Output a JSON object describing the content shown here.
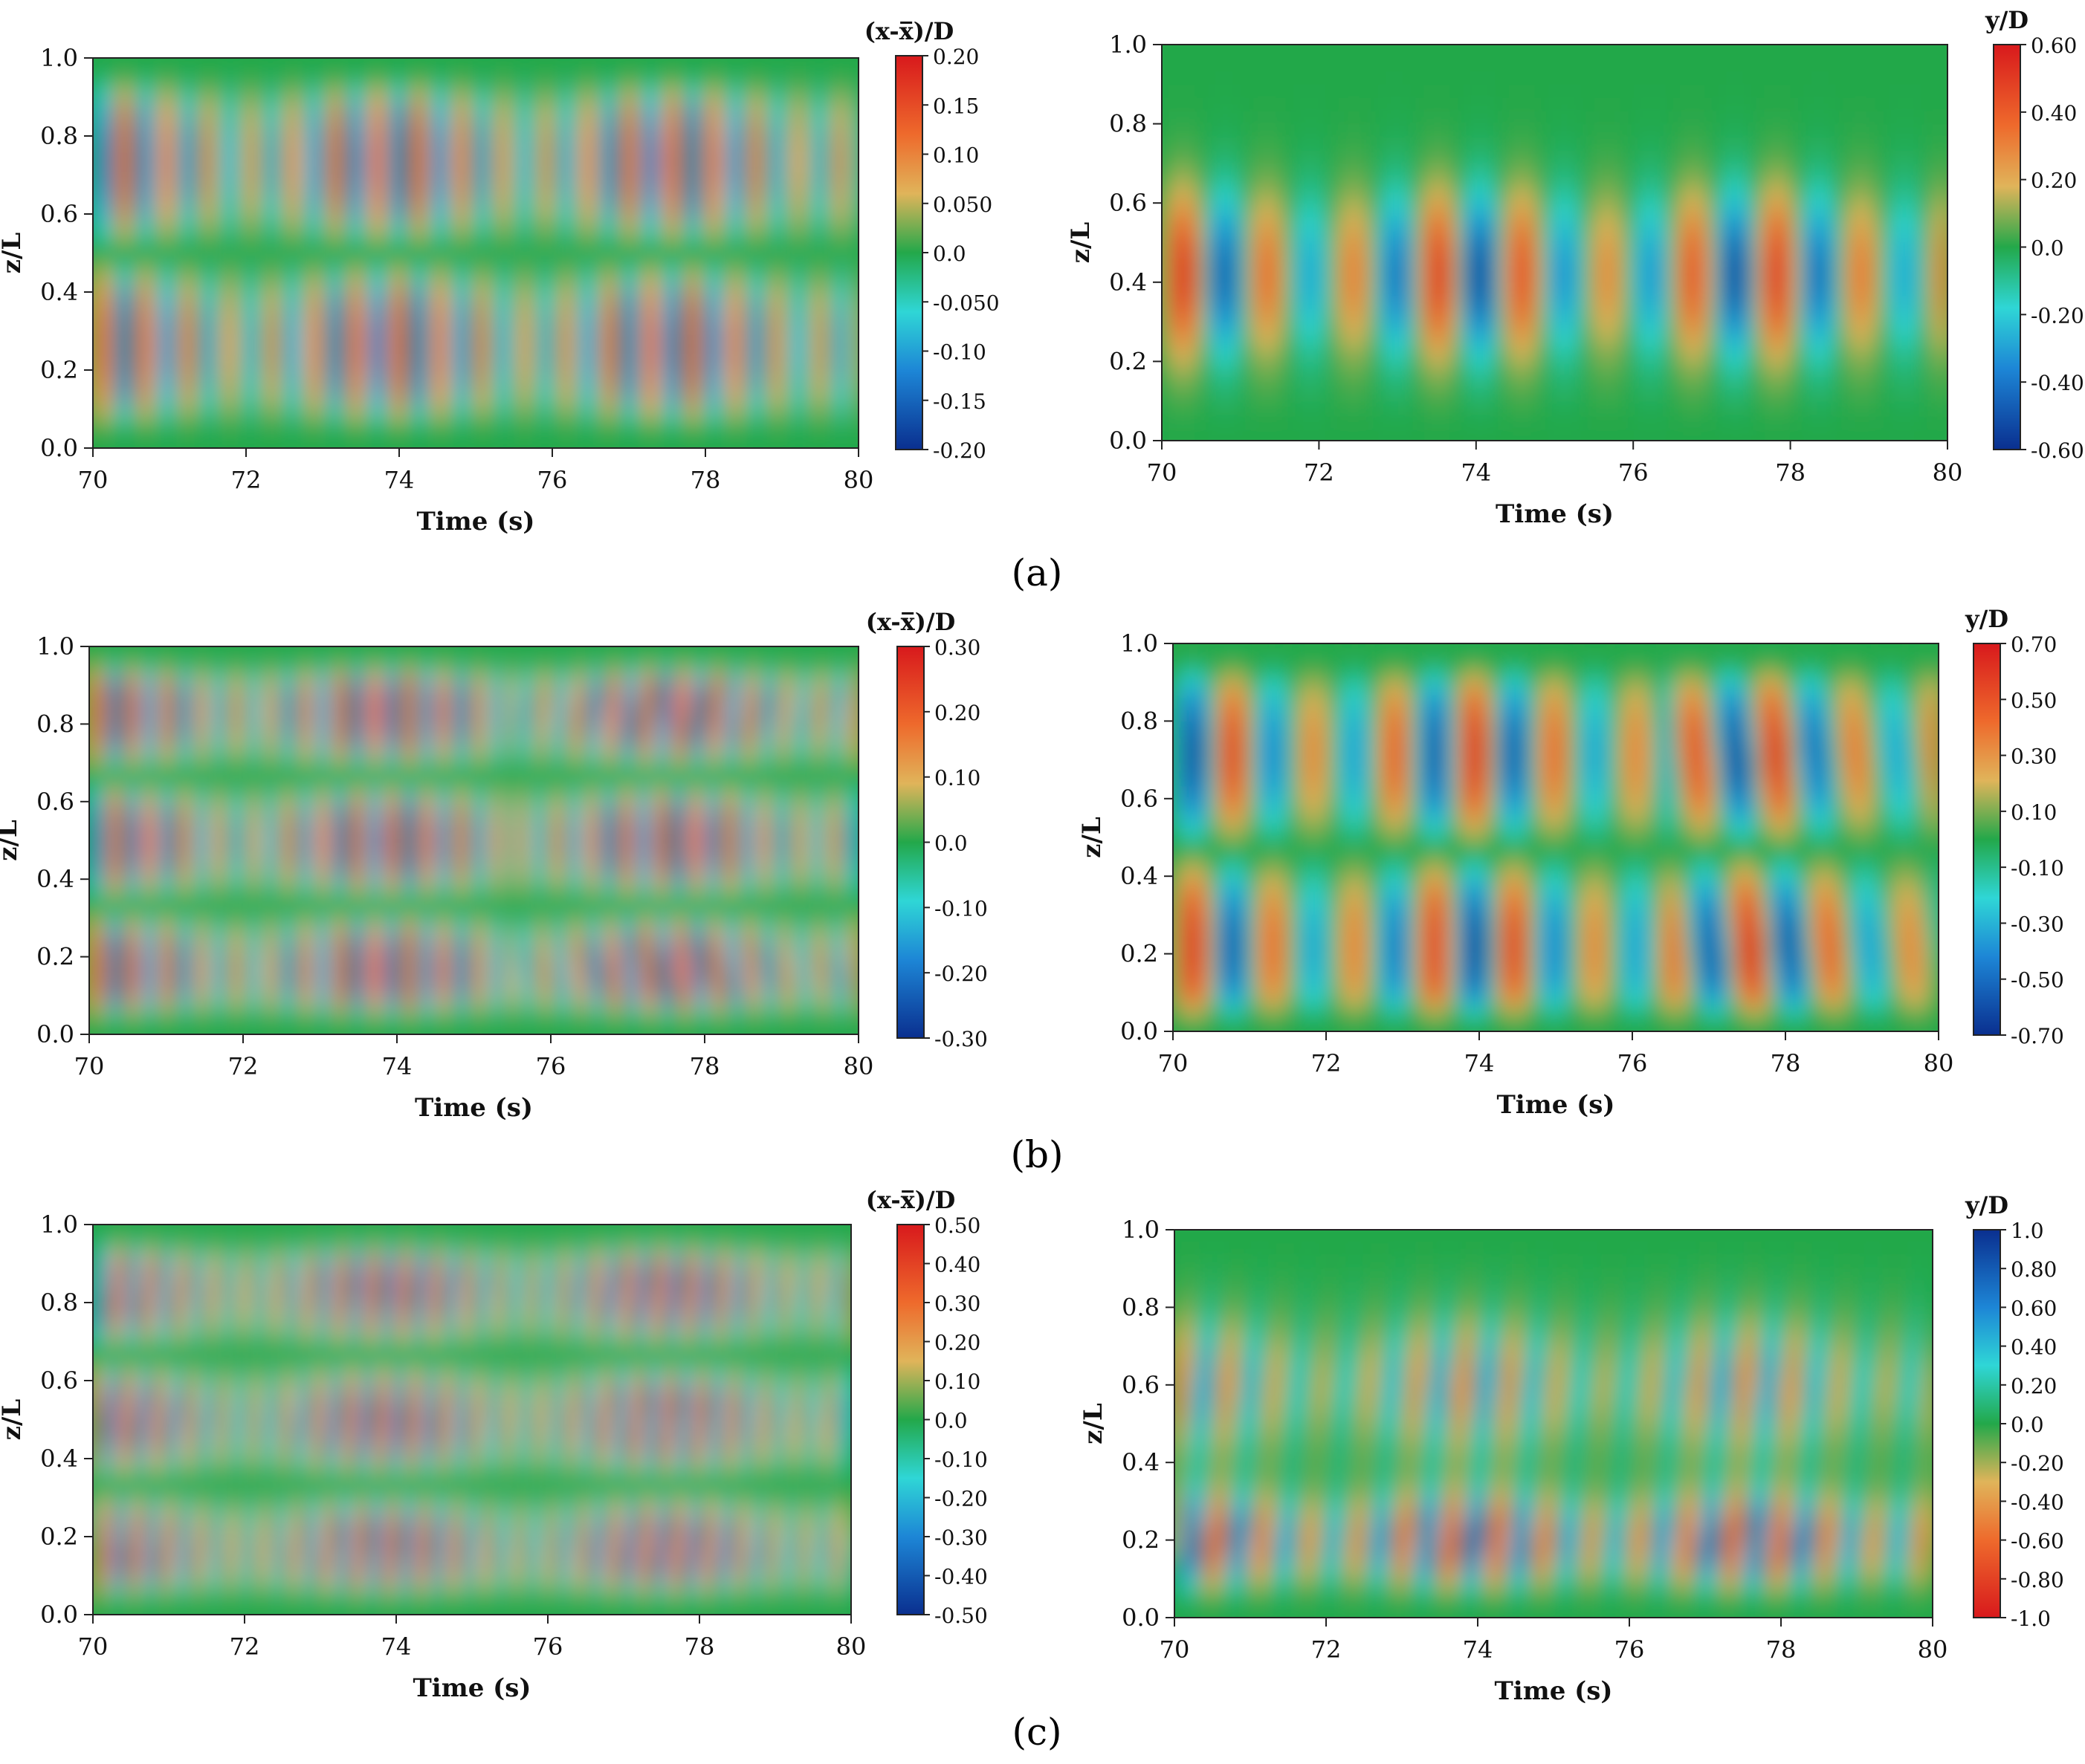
{
  "panel_labels": [
    "(a)",
    "(b)",
    "(c)"
  ],
  "chart_data": [
    {
      "type": "heatmap",
      "panel": "(a)",
      "position": "left",
      "xlabel": "Time (s)",
      "ylabel": "z/L",
      "xlim": [
        70,
        80
      ],
      "ylim": [
        0.0,
        1.0
      ],
      "xticks": [
        "70",
        "72",
        "74",
        "76",
        "78",
        "80"
      ],
      "yticks": [
        "0.0",
        "0.2",
        "0.4",
        "0.6",
        "0.8",
        "1.0"
      ],
      "colorbar": {
        "title": "(x-x̅)/D",
        "range": [
          -0.2,
          0.2
        ],
        "reversed": false,
        "ticks": [
          "0.20",
          "0.15",
          "0.10",
          "0.050",
          "0.0",
          "-0.050",
          "-0.10",
          "-0.15",
          "-0.20"
        ]
      },
      "field": {
        "pattern": "two_cell",
        "amplitude": 0.2,
        "period_s": 0.55,
        "lobes": [
          0.27,
          0.73
        ]
      }
    },
    {
      "type": "heatmap",
      "panel": "(a)",
      "position": "right",
      "xlabel": "Time (s)",
      "ylabel": "z/L",
      "xlim": [
        70,
        80
      ],
      "ylim": [
        0.0,
        1.0
      ],
      "xticks": [
        "70",
        "72",
        "74",
        "76",
        "78",
        "80"
      ],
      "yticks": [
        "0.0",
        "0.2",
        "0.4",
        "0.6",
        "0.8",
        "1.0"
      ],
      "colorbar": {
        "title": "y/D",
        "range": [
          -0.6,
          0.6
        ],
        "reversed": false,
        "ticks": [
          "0.60",
          "0.40",
          "0.20",
          "0.0",
          "-0.20",
          "-0.40",
          "-0.60"
        ]
      },
      "field": {
        "pattern": "single_cell",
        "amplitude": 0.6,
        "period_s": 1.08,
        "lobes": [
          0.42
        ]
      }
    },
    {
      "type": "heatmap",
      "panel": "(b)",
      "position": "left",
      "xlabel": "Time (s)",
      "ylabel": "z/L",
      "xlim": [
        70,
        80
      ],
      "ylim": [
        0.0,
        1.0
      ],
      "xticks": [
        "70",
        "72",
        "74",
        "76",
        "78",
        "80"
      ],
      "yticks": [
        "0.0",
        "0.2",
        "0.4",
        "0.6",
        "0.8",
        "1.0"
      ],
      "colorbar": {
        "title": "(x-x̅)/D",
        "range": [
          -0.3,
          0.3
        ],
        "reversed": false,
        "ticks": [
          "0.30",
          "0.20",
          "0.10",
          "0.0",
          "-0.10",
          "-0.20",
          "-0.30"
        ]
      },
      "field": {
        "pattern": "three_cell_shift",
        "amplitude": 0.3,
        "period_s": 0.45,
        "lobes": [
          0.2,
          0.5,
          0.8
        ]
      }
    },
    {
      "type": "heatmap",
      "panel": "(b)",
      "position": "right",
      "xlabel": "Time (s)",
      "ylabel": "z/L",
      "xlim": [
        70,
        80
      ],
      "ylim": [
        0.0,
        1.0
      ],
      "xticks": [
        "70",
        "72",
        "74",
        "76",
        "78",
        "80"
      ],
      "yticks": [
        "0.0",
        "0.2",
        "0.4",
        "0.6",
        "0.8",
        "1.0"
      ],
      "colorbar": {
        "title": "y/D",
        "range": [
          -0.7,
          0.7
        ],
        "reversed": false,
        "ticks": [
          "0.70",
          "0.50",
          "0.30",
          "0.10",
          "-0.10",
          "-0.30",
          "-0.50",
          "-0.70"
        ]
      },
      "field": {
        "pattern": "two_cell_tilt",
        "amplitude": 0.7,
        "period_s": 1.05,
        "lobes": [
          0.24,
          0.72
        ]
      }
    },
    {
      "type": "heatmap",
      "panel": "(c)",
      "position": "left",
      "xlabel": "Time (s)",
      "ylabel": "z/L",
      "xlim": [
        70,
        80
      ],
      "ylim": [
        0.0,
        1.0
      ],
      "xticks": [
        "70",
        "72",
        "74",
        "76",
        "78",
        "80"
      ],
      "yticks": [
        "0.0",
        "0.2",
        "0.4",
        "0.6",
        "0.8",
        "1.0"
      ],
      "colorbar": {
        "title": "(x-x̅)/D",
        "range": [
          -0.5,
          0.5
        ],
        "reversed": false,
        "ticks": [
          "0.50",
          "0.40",
          "0.30",
          "0.20",
          "0.10",
          "0.0",
          "-0.10",
          "-0.20",
          "-0.30",
          "-0.40",
          "-0.50"
        ]
      },
      "field": {
        "pattern": "traveling",
        "amplitude": 0.5,
        "period_s": 0.42,
        "lobes": [
          0.2,
          0.5,
          0.8
        ]
      }
    },
    {
      "type": "heatmap",
      "panel": "(c)",
      "position": "right",
      "xlabel": "Time (s)",
      "ylabel": "z/L",
      "xlim": [
        70,
        80
      ],
      "ylim": [
        0.0,
        1.0
      ],
      "xticks": [
        "70",
        "72",
        "74",
        "76",
        "78",
        "80"
      ],
      "yticks": [
        "0.0",
        "0.2",
        "0.4",
        "0.6",
        "0.8",
        "1.0"
      ],
      "colorbar": {
        "title": "y/D",
        "range": [
          -1.0,
          1.0
        ],
        "reversed": true,
        "ticks": [
          "1.0",
          "0.80",
          "0.60",
          "0.40",
          "0.20",
          "0.0",
          "-0.20",
          "-0.40",
          "-0.60",
          "-0.80",
          "-1.0"
        ]
      },
      "field": {
        "pattern": "traveling_low",
        "amplitude": 1.0,
        "period_s": 0.62,
        "lobes": [
          0.2,
          0.6
        ]
      }
    }
  ]
}
